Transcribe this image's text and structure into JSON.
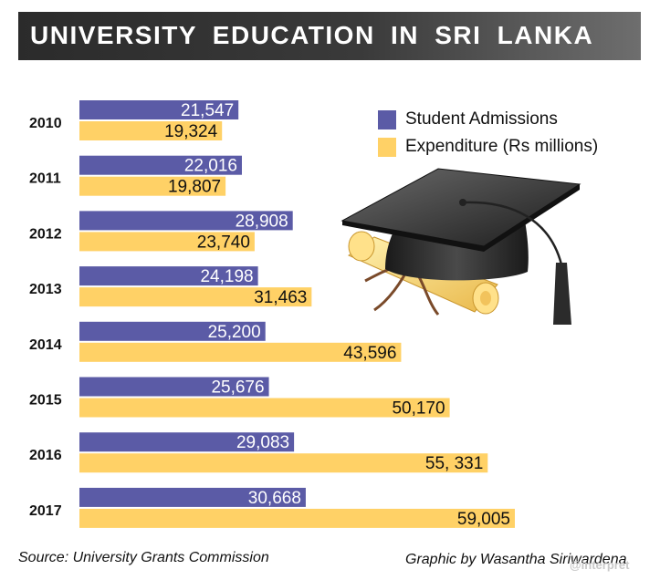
{
  "title": "UNIVERSITY EDUCATION IN SRI LANKA",
  "colors": {
    "admissions": "#5b5ba6",
    "expenditure": "#ffd166"
  },
  "legend": [
    {
      "label": "Student Admissions",
      "color": "#5b5ba6"
    },
    {
      "label": "Expenditure (Rs millions)",
      "color": "#ffd166"
    }
  ],
  "chart_data": {
    "type": "bar",
    "orientation": "horizontal",
    "categories": [
      "2010",
      "2011",
      "2012",
      "2013",
      "2014",
      "2015",
      "2016",
      "2017"
    ],
    "series": [
      {
        "name": "Student Admissions",
        "values": [
          21547,
          22016,
          28908,
          24198,
          25200,
          25676,
          29083,
          30668
        ],
        "labels": [
          "21,547",
          "22,016",
          "28,908",
          "24,198",
          "25,200",
          "25,676",
          "29,083",
          "30,668"
        ]
      },
      {
        "name": "Expenditure (Rs millions)",
        "values": [
          19324,
          19807,
          23740,
          31463,
          43596,
          50170,
          55331,
          59005
        ],
        "labels": [
          "19,324",
          "19,807",
          "23,740",
          "31,463",
          "43,596",
          "50,170",
          "55, 331",
          "59,005"
        ]
      }
    ],
    "legend_position": "top-right",
    "grid": false
  },
  "footer": {
    "source": "Source: University Grants Commission",
    "credit": "Graphic by Wasantha Siriwardena"
  },
  "watermark": "@interpret",
  "icons": [
    "graduation-cap-icon",
    "diploma-scroll-icon"
  ]
}
